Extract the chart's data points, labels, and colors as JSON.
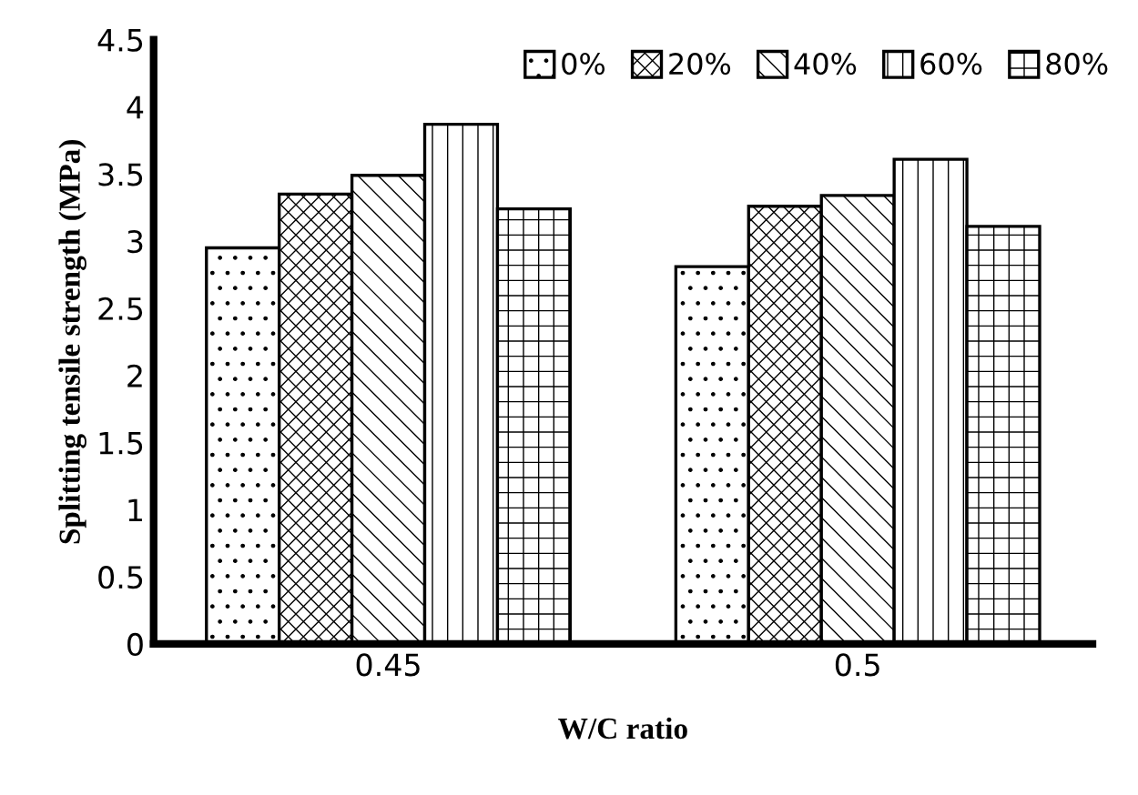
{
  "chart_data": {
    "type": "bar",
    "xlabel": "W/C ratio",
    "ylabel": "Splitting tensile strength (MPa)",
    "categories": [
      "0.45",
      "0.5"
    ],
    "series": [
      {
        "name": "0%",
        "color": "#000000",
        "values": [
          2.95,
          2.81
        ]
      },
      {
        "name": "20%",
        "color": "#000000",
        "values": [
          3.35,
          3.26
        ]
      },
      {
        "name": "40%",
        "color": "#000000",
        "values": [
          3.49,
          3.34
        ]
      },
      {
        "name": "60%",
        "color": "#000000",
        "values": [
          3.87,
          3.61
        ]
      },
      {
        "name": "80%",
        "color": "#000000",
        "values": [
          3.24,
          3.11
        ]
      }
    ],
    "ylim": [
      0,
      4.5
    ],
    "yticks": [
      0,
      0.5,
      1,
      1.5,
      2,
      2.5,
      3,
      3.5,
      4,
      4.5
    ],
    "legend": "top right",
    "grid": false
  }
}
